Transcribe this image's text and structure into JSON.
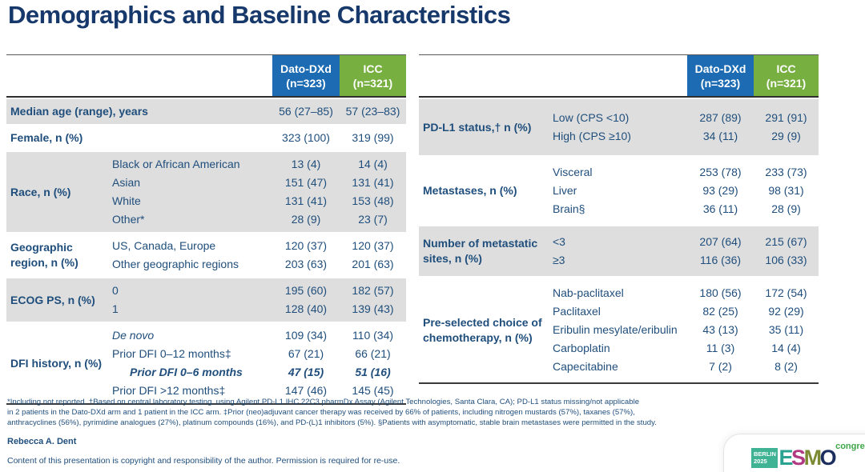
{
  "title": "Demographics and Baseline Characteristics",
  "columns": {
    "dato_name": "Dato-DXd",
    "dato_n": "(n=323)",
    "icc_name": "ICC",
    "icc_n": "(n=321)"
  },
  "left_table": {
    "rows": [
      {
        "label": "Median age (range), years",
        "dato": "56 (27–85)",
        "icc": "57 (23–83)"
      },
      {
        "label": "Female, n (%)",
        "dato": "323 (100)",
        "icc": "319 (99)"
      },
      {
        "label": "Race, n (%)",
        "items": [
          {
            "sub": "Black or African American",
            "dato": "13 (4)",
            "icc": "14 (4)"
          },
          {
            "sub": "Asian",
            "dato": "151 (47)",
            "icc": "131 (41)"
          },
          {
            "sub": "White",
            "dato": "131 (41)",
            "icc": "153 (48)"
          },
          {
            "sub": "Other*",
            "dato": "28 (9)",
            "icc": "23 (7)"
          }
        ]
      },
      {
        "label": "Geographic region, n (%)",
        "items": [
          {
            "sub": "US, Canada, Europe",
            "dato": "120 (37)",
            "icc": "120 (37)"
          },
          {
            "sub": "Other geographic regions",
            "dato": "203 (63)",
            "icc": "201 (63)"
          }
        ]
      },
      {
        "label": "ECOG PS, n (%)",
        "items": [
          {
            "sub": "0",
            "dato": "195 (60)",
            "icc": "182 (57)"
          },
          {
            "sub": "1",
            "dato": "128 (40)",
            "icc": "139 (43)"
          }
        ]
      },
      {
        "label": "DFI history, n (%)",
        "items": [
          {
            "sub": "De novo",
            "dato": "109 (34)",
            "icc": "110 (34)"
          },
          {
            "sub": "Prior DFI 0–12 months‡",
            "dato": "67 (21)",
            "icc": "66 (21)"
          },
          {
            "sub": "Prior DFI 0–6 months",
            "dato": "47 (15)",
            "icc": "51 (16)"
          },
          {
            "sub": "Prior DFI >12 months‡",
            "dato": "147 (46)",
            "icc": "145 (45)"
          }
        ]
      }
    ]
  },
  "right_table": {
    "rows": [
      {
        "label": "PD-L1 status,† n (%)",
        "items": [
          {
            "sub": "Low (CPS <10)",
            "dato": "287 (89)",
            "icc": "291 (91)"
          },
          {
            "sub": "High (CPS ≥10)",
            "dato": "34 (11)",
            "icc": "29 (9)"
          }
        ]
      },
      {
        "label": "Metastases, n (%)",
        "items": [
          {
            "sub": "Visceral",
            "dato": "253 (78)",
            "icc": "233 (73)"
          },
          {
            "sub": "Liver",
            "dato": "93 (29)",
            "icc": "98 (31)"
          },
          {
            "sub": "Brain§",
            "dato": "36 (11)",
            "icc": "28 (9)"
          }
        ]
      },
      {
        "label": "Number of metastatic sites, n (%)",
        "items": [
          {
            "sub": "<3",
            "dato": "207 (64)",
            "icc": "215 (67)"
          },
          {
            "sub": "≥3",
            "dato": "116 (36)",
            "icc": "106 (33)"
          }
        ]
      },
      {
        "label": "Pre-selected choice of chemotherapy, n (%)",
        "items": [
          {
            "sub": "Nab-paclitaxel",
            "dato": "180 (56)",
            "icc": "172 (54)"
          },
          {
            "sub": "Paclitaxel",
            "dato": "82 (25)",
            "icc": "92 (29)"
          },
          {
            "sub": "Eribulin mesylate/eribulin",
            "dato": "43 (13)",
            "icc": "35 (11)"
          },
          {
            "sub": "Carboplatin",
            "dato": "11 (3)",
            "icc": "14 (4)"
          },
          {
            "sub": "Capecitabine",
            "dato": "7 (2)",
            "icc": "8 (2)"
          }
        ]
      }
    ]
  },
  "footnote": {
    "line1": "*Including not reported. †Based on central laboratory testing, using Agilent PD-L1 IHC 22C3 pharmDx Assay (Agilent Technologies, Santa Clara, CA); PD-L1 status missing/not applicable",
    "line2": "in 2 patients in the Dato-DXd arm and 1 patient in the ICC arm. ‡Prior (neo)adjuvant cancer therapy was received by 66% of patients, including nitrogen mustards (57%), taxanes (57%),",
    "line3": "anthracyclines (56%), pyrimidine analogues (27%), platinum compounds (16%), and PD-(L)1 inhibitors (5%). §Patients with asymptomatic, stable brain metastases were permitted in the study."
  },
  "author": "Rebecca A. Dent",
  "copyright": "Content of this presentation is copyright and responsibility of the author. Permission is required for re-use.",
  "logo": {
    "city": "BERLIN",
    "year": "2025",
    "letters": [
      "E",
      "S",
      "M",
      "O"
    ],
    "congress": "congress"
  },
  "colors": {
    "dato_header": "#1C6BB3",
    "icc_header": "#77B041",
    "row_gray": "#DEDEDE",
    "text_navy": "#1F4E7C",
    "title_navy": "#17386B"
  }
}
